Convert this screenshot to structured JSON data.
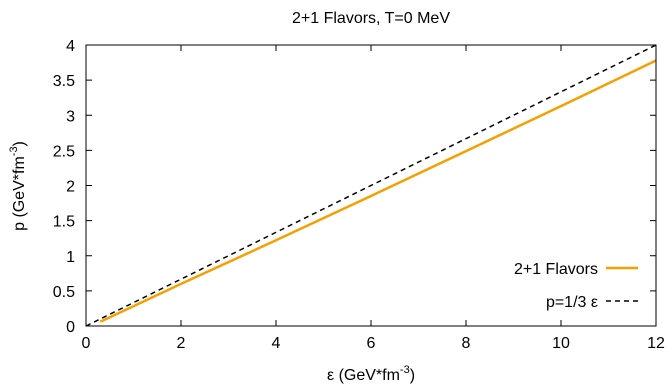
{
  "chart_data": {
    "type": "line",
    "title": "2+1 Flavors, T=0 MeV",
    "xlabel": {
      "base": "ε (GeV*fm",
      "sup": "-3",
      "tail": ")"
    },
    "ylabel": {
      "base": "p (GeV*fm",
      "sup": "-3",
      "tail": ")"
    },
    "xlim": [
      0,
      12
    ],
    "ylim": [
      0,
      4
    ],
    "xticks": [
      0,
      2,
      4,
      6,
      8,
      10,
      12
    ],
    "yticks": [
      0,
      0.5,
      1,
      1.5,
      2,
      2.5,
      3,
      3.5,
      4
    ],
    "xtick_labels": [
      "0",
      "2",
      "4",
      "6",
      "8",
      "10",
      "12"
    ],
    "ytick_labels": [
      "0",
      "0.5",
      "1",
      "1.5",
      "2",
      "2.5",
      "3",
      "3.5",
      "4"
    ],
    "grid": false,
    "legend_position": "bottom-right",
    "series": [
      {
        "name": "2+1 Flavors",
        "color": "#f5a000",
        "style": "solid",
        "x": [
          0.3,
          2,
          4,
          6,
          8,
          10,
          12
        ],
        "y": [
          0.06,
          0.6,
          1.22,
          1.85,
          2.49,
          3.13,
          3.78
        ]
      },
      {
        "name": "p=1/3 ε",
        "color": "#000000",
        "style": "dashed",
        "x": [
          0,
          12
        ],
        "y": [
          0,
          4
        ]
      }
    ]
  }
}
